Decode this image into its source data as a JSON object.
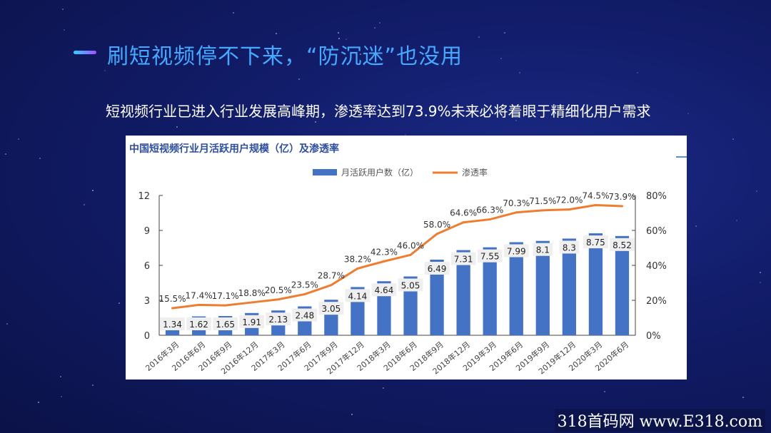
{
  "slide": {
    "title": "刷短视频停不下来，“防沉迷”也没用",
    "subtitle": "短视频行业已进入行业发展高峰期，渗透率达到73.9%未来必将着眼于精细化用户需求",
    "watermark": "318首码网 www.E318.com"
  },
  "colors": {
    "bar": "#4472c4",
    "line": "#ed7d31",
    "title_accent": "#46a8ff",
    "chart_title": "#2e4e9e"
  },
  "chart_data": {
    "type": "bar",
    "title": "中国短视频行业月活跃用户规模（亿）及渗透率",
    "categories": [
      "2016年3月",
      "2016年6月",
      "2016年9月",
      "2016年12月",
      "2017年3月",
      "2017年6月",
      "2017年9月",
      "2017年12月",
      "2018年3月",
      "2018年6月",
      "2018年9月",
      "2018年12月",
      "2019年3月",
      "2019年6月",
      "2019年9月",
      "2019年12月",
      "2020年3月",
      "2020年6月"
    ],
    "series": [
      {
        "name": "月活跃用户数（亿）",
        "type": "bar",
        "axis": "left",
        "values": [
          1.34,
          1.62,
          1.65,
          1.91,
          2.13,
          2.48,
          3.05,
          4.14,
          4.64,
          5.05,
          6.49,
          7.31,
          7.55,
          7.99,
          8.1,
          8.3,
          8.75,
          8.52
        ],
        "labels": [
          "1.34",
          "1.62",
          "1.65",
          "1.91",
          "2.13",
          "2.48",
          "3.05",
          "4.14",
          "4.64",
          "5.05",
          "6.49",
          "7.31",
          "7.55",
          "7.99",
          "8.1",
          "8.3",
          "8.75",
          "8.52"
        ]
      },
      {
        "name": "渗透率",
        "type": "line",
        "axis": "right",
        "values": [
          15.5,
          17.4,
          17.1,
          18.8,
          20.5,
          23.5,
          28.7,
          38.2,
          42.3,
          46.0,
          58.0,
          64.6,
          66.3,
          70.3,
          71.5,
          72.0,
          74.5,
          73.9
        ],
        "labels": [
          "15.5%",
          "17.4%",
          "17.1%",
          "18.8%",
          "20.5%",
          "23.5%",
          "28.7%",
          "38.2%",
          "42.3%",
          "46.0%",
          "58.0%",
          "64.6%",
          "66.3%",
          "70.3%",
          "71.5%",
          "72.0%",
          "74.5%",
          "73.9%"
        ]
      }
    ],
    "y_left": {
      "range": [
        0,
        12
      ],
      "ticks": [
        "0",
        "3",
        "6",
        "9",
        "12"
      ]
    },
    "y_right": {
      "range": [
        0,
        80
      ],
      "ticks": [
        "0%",
        "20%",
        "40%",
        "60%",
        "80%"
      ]
    },
    "legend": "top-center",
    "grid": false
  }
}
